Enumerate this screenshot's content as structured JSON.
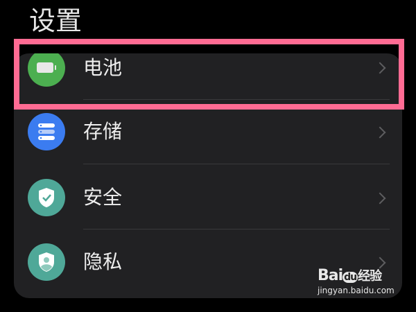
{
  "header": {
    "title": "设置"
  },
  "settings": {
    "items": [
      {
        "label": "电池",
        "icon": "battery-icon",
        "color": "#4caf50"
      },
      {
        "label": "存储",
        "icon": "storage-icon",
        "color": "#3b7cf0"
      },
      {
        "label": "安全",
        "icon": "shield-check-icon",
        "color": "#4fa898"
      },
      {
        "label": "隐私",
        "icon": "privacy-shield-icon",
        "color": "#4fa898"
      }
    ]
  },
  "highlight": {
    "color": "#ff6b93"
  },
  "watermark": {
    "brand": "Bai",
    "brand2": "du",
    "brand3": "经验",
    "url": "jingyan.baidu.com"
  }
}
